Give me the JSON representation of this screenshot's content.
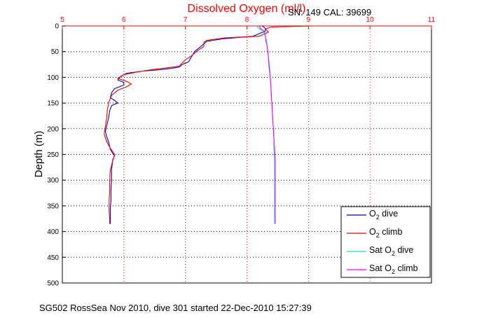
{
  "chart_data": {
    "type": "line",
    "title": "Dissolved Oxygen (ml/l)",
    "annotation": "SN: 149  CAL: 39699",
    "ylabel": "Depth (m)",
    "caption": "SG502 RossSea Nov 2010, dive 301 started 22-Dec-2010 15:27:39",
    "xlim": [
      5,
      11
    ],
    "ylim": [
      0,
      500
    ],
    "y_reversed": true,
    "x_axis_position": "top",
    "grid": true,
    "xticks": [
      5,
      6,
      7,
      8,
      9,
      10,
      11
    ],
    "yticks": [
      0,
      50,
      100,
      150,
      200,
      250,
      300,
      350,
      400,
      450,
      500
    ],
    "legend_position": "bottom-right",
    "series": [
      {
        "legend_prefix": "O",
        "legend_sub": "2",
        "legend_suffix": " dive",
        "color": "#0000cc",
        "points": [
          [
            8.25,
            0
          ],
          [
            8.3,
            5
          ],
          [
            8.3,
            10
          ],
          [
            8.1,
            20
          ],
          [
            7.6,
            25
          ],
          [
            7.35,
            30
          ],
          [
            7.3,
            35
          ],
          [
            7.25,
            40
          ],
          [
            7.15,
            50
          ],
          [
            7.1,
            60
          ],
          [
            7.05,
            70
          ],
          [
            6.95,
            75
          ],
          [
            6.9,
            80
          ],
          [
            6.8,
            82
          ],
          [
            6.6,
            85
          ],
          [
            6.3,
            88
          ],
          [
            6.05,
            92
          ],
          [
            5.95,
            98
          ],
          [
            5.9,
            105
          ],
          [
            6.0,
            110
          ],
          [
            6.0,
            115
          ],
          [
            5.85,
            122
          ],
          [
            5.8,
            130
          ],
          [
            5.78,
            140
          ],
          [
            5.85,
            145
          ],
          [
            5.9,
            150
          ],
          [
            5.8,
            155
          ],
          [
            5.77,
            165
          ],
          [
            5.75,
            180
          ],
          [
            5.72,
            195
          ],
          [
            5.7,
            205
          ],
          [
            5.72,
            215
          ],
          [
            5.75,
            225
          ],
          [
            5.78,
            240
          ],
          [
            5.82,
            248
          ],
          [
            5.85,
            252
          ],
          [
            5.82,
            260
          ],
          [
            5.8,
            280
          ],
          [
            5.8,
            300
          ],
          [
            5.79,
            320
          ],
          [
            5.79,
            340
          ],
          [
            5.78,
            355
          ],
          [
            5.78,
            370
          ],
          [
            5.78,
            385
          ]
        ]
      },
      {
        "legend_prefix": "O",
        "legend_sub": "2",
        "legend_suffix": " climb",
        "color": "#ff0000",
        "points": [
          [
            9.1,
            0
          ],
          [
            8.4,
            2
          ],
          [
            8.3,
            6
          ],
          [
            8.35,
            12
          ],
          [
            8.2,
            20
          ],
          [
            7.65,
            23
          ],
          [
            7.35,
            28
          ],
          [
            7.3,
            32
          ],
          [
            7.3,
            40
          ],
          [
            7.2,
            48
          ],
          [
            7.1,
            58
          ],
          [
            7.0,
            66
          ],
          [
            6.95,
            72
          ],
          [
            6.9,
            78
          ],
          [
            6.8,
            80
          ],
          [
            6.45,
            85
          ],
          [
            6.2,
            90
          ],
          [
            6.0,
            95
          ],
          [
            5.9,
            102
          ],
          [
            6.05,
            108
          ],
          [
            6.12,
            113
          ],
          [
            6.05,
            118
          ],
          [
            5.9,
            125
          ],
          [
            5.8,
            135
          ],
          [
            5.75,
            150
          ],
          [
            5.73,
            165
          ],
          [
            5.72,
            180
          ],
          [
            5.7,
            195
          ],
          [
            5.68,
            210
          ],
          [
            5.72,
            225
          ],
          [
            5.78,
            238
          ],
          [
            5.85,
            250
          ],
          [
            5.82,
            262
          ],
          [
            5.78,
            280
          ],
          [
            5.77,
            300
          ],
          [
            5.77,
            320
          ],
          [
            5.76,
            340
          ],
          [
            5.76,
            360
          ],
          [
            5.77,
            375
          ],
          [
            5.77,
            385
          ]
        ]
      },
      {
        "legend_prefix": "Sat O",
        "legend_sub": "2",
        "legend_suffix": " dive",
        "color": "#00e5e5",
        "points": [
          [
            8.15,
            0
          ],
          [
            8.2,
            5
          ],
          [
            8.25,
            10
          ],
          [
            8.3,
            20
          ],
          [
            8.32,
            30
          ],
          [
            8.33,
            40
          ],
          [
            8.35,
            60
          ],
          [
            8.37,
            80
          ],
          [
            8.38,
            100
          ],
          [
            8.39,
            120
          ],
          [
            8.4,
            140
          ],
          [
            8.41,
            160
          ],
          [
            8.42,
            180
          ],
          [
            8.43,
            200
          ],
          [
            8.44,
            220
          ],
          [
            8.44,
            240
          ],
          [
            8.45,
            260
          ],
          [
            8.45,
            280
          ],
          [
            8.45,
            300
          ],
          [
            8.45,
            320
          ],
          [
            8.45,
            340
          ],
          [
            8.45,
            360
          ],
          [
            8.45,
            385
          ]
        ]
      },
      {
        "legend_prefix": "Sat O",
        "legend_sub": "2",
        "legend_suffix": " climb",
        "color": "#ff00ff",
        "points": [
          [
            8.2,
            0
          ],
          [
            8.22,
            5
          ],
          [
            8.28,
            10
          ],
          [
            8.3,
            20
          ],
          [
            8.31,
            30
          ],
          [
            8.33,
            40
          ],
          [
            8.35,
            60
          ],
          [
            8.36,
            80
          ],
          [
            8.38,
            100
          ],
          [
            8.39,
            120
          ],
          [
            8.4,
            140
          ],
          [
            8.41,
            160
          ],
          [
            8.42,
            180
          ],
          [
            8.43,
            200
          ],
          [
            8.44,
            220
          ],
          [
            8.45,
            240
          ],
          [
            8.46,
            260
          ],
          [
            8.46,
            280
          ],
          [
            8.46,
            300
          ],
          [
            8.46,
            320
          ],
          [
            8.46,
            340
          ],
          [
            8.46,
            360
          ],
          [
            8.46,
            385
          ]
        ]
      }
    ]
  }
}
